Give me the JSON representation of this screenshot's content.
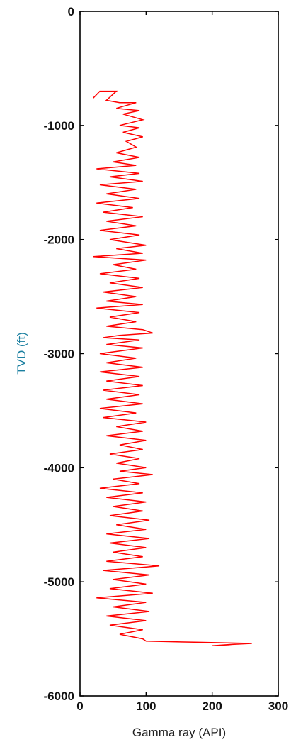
{
  "chart_data": {
    "type": "line",
    "title": "",
    "xlabel": "Gamma ray (API)",
    "ylabel": "TVD (ft)",
    "xlim": [
      0,
      300
    ],
    "ylim": [
      -6000,
      0
    ],
    "xticks": [
      "0",
      "100",
      "200",
      "300"
    ],
    "yticks": [
      "0",
      "-1000",
      "-2000",
      "-3000",
      "-4000",
      "-5000",
      "-6000"
    ],
    "grid": false,
    "series": [
      {
        "color": "#ff0000",
        "points": [
          [
            20,
            -760
          ],
          [
            30,
            -700
          ],
          [
            55,
            -700
          ],
          [
            40,
            -780
          ],
          [
            60,
            -800
          ],
          [
            85,
            -800
          ],
          [
            55,
            -850
          ],
          [
            90,
            -870
          ],
          [
            65,
            -900
          ],
          [
            95,
            -950
          ],
          [
            60,
            -1000
          ],
          [
            90,
            -1020
          ],
          [
            65,
            -1060
          ],
          [
            95,
            -1100
          ],
          [
            70,
            -1140
          ],
          [
            85,
            -1190
          ],
          [
            55,
            -1240
          ],
          [
            90,
            -1280
          ],
          [
            50,
            -1320
          ],
          [
            85,
            -1350
          ],
          [
            25,
            -1380
          ],
          [
            90,
            -1420
          ],
          [
            45,
            -1450
          ],
          [
            95,
            -1490
          ],
          [
            30,
            -1520
          ],
          [
            85,
            -1560
          ],
          [
            40,
            -1600
          ],
          [
            90,
            -1640
          ],
          [
            25,
            -1680
          ],
          [
            80,
            -1720
          ],
          [
            35,
            -1760
          ],
          [
            95,
            -1800
          ],
          [
            40,
            -1840
          ],
          [
            85,
            -1880
          ],
          [
            30,
            -1920
          ],
          [
            90,
            -1960
          ],
          [
            45,
            -2000
          ],
          [
            100,
            -2050
          ],
          [
            55,
            -2080
          ],
          [
            95,
            -2120
          ],
          [
            20,
            -2150
          ],
          [
            100,
            -2180
          ],
          [
            50,
            -2220
          ],
          [
            85,
            -2260
          ],
          [
            30,
            -2300
          ],
          [
            90,
            -2340
          ],
          [
            45,
            -2380
          ],
          [
            95,
            -2420
          ],
          [
            35,
            -2460
          ],
          [
            85,
            -2500
          ],
          [
            40,
            -2540
          ],
          [
            95,
            -2570
          ],
          [
            25,
            -2600
          ],
          [
            90,
            -2640
          ],
          [
            45,
            -2680
          ],
          [
            85,
            -2720
          ],
          [
            40,
            -2760
          ],
          [
            95,
            -2790
          ],
          [
            110,
            -2820
          ],
          [
            60,
            -2840
          ],
          [
            35,
            -2860
          ],
          [
            90,
            -2880
          ],
          [
            40,
            -2920
          ],
          [
            95,
            -2950
          ],
          [
            30,
            -3000
          ],
          [
            85,
            -3040
          ],
          [
            40,
            -3080
          ],
          [
            95,
            -3120
          ],
          [
            30,
            -3160
          ],
          [
            90,
            -3200
          ],
          [
            40,
            -3240
          ],
          [
            95,
            -3280
          ],
          [
            35,
            -3320
          ],
          [
            90,
            -3360
          ],
          [
            40,
            -3400
          ],
          [
            95,
            -3440
          ],
          [
            30,
            -3480
          ],
          [
            85,
            -3520
          ],
          [
            35,
            -3560
          ],
          [
            100,
            -3600
          ],
          [
            55,
            -3640
          ],
          [
            95,
            -3680
          ],
          [
            40,
            -3720
          ],
          [
            100,
            -3760
          ],
          [
            60,
            -3800
          ],
          [
            95,
            -3840
          ],
          [
            45,
            -3880
          ],
          [
            90,
            -3920
          ],
          [
            55,
            -3960
          ],
          [
            100,
            -4000
          ],
          [
            60,
            -4030
          ],
          [
            110,
            -4060
          ],
          [
            50,
            -4100
          ],
          [
            90,
            -4140
          ],
          [
            30,
            -4180
          ],
          [
            95,
            -4220
          ],
          [
            40,
            -4260
          ],
          [
            100,
            -4300
          ],
          [
            50,
            -4340
          ],
          [
            95,
            -4380
          ],
          [
            45,
            -4420
          ],
          [
            105,
            -4460
          ],
          [
            55,
            -4500
          ],
          [
            100,
            -4540
          ],
          [
            40,
            -4580
          ],
          [
            105,
            -4620
          ],
          [
            45,
            -4660
          ],
          [
            100,
            -4700
          ],
          [
            50,
            -4740
          ],
          [
            95,
            -4780
          ],
          [
            40,
            -4820
          ],
          [
            120,
            -4860
          ],
          [
            35,
            -4900
          ],
          [
            105,
            -4940
          ],
          [
            50,
            -4980
          ],
          [
            100,
            -5020
          ],
          [
            45,
            -5060
          ],
          [
            110,
            -5100
          ],
          [
            25,
            -5140
          ],
          [
            100,
            -5180
          ],
          [
            50,
            -5220
          ],
          [
            105,
            -5260
          ],
          [
            40,
            -5300
          ],
          [
            100,
            -5340
          ],
          [
            45,
            -5380
          ],
          [
            95,
            -5420
          ],
          [
            60,
            -5460
          ],
          [
            95,
            -5500
          ],
          [
            100,
            -5520
          ],
          [
            180,
            -5530
          ],
          [
            260,
            -5540
          ],
          [
            225,
            -5550
          ],
          [
            200,
            -5560
          ],
          [
            230,
            -5550
          ]
        ]
      }
    ]
  }
}
